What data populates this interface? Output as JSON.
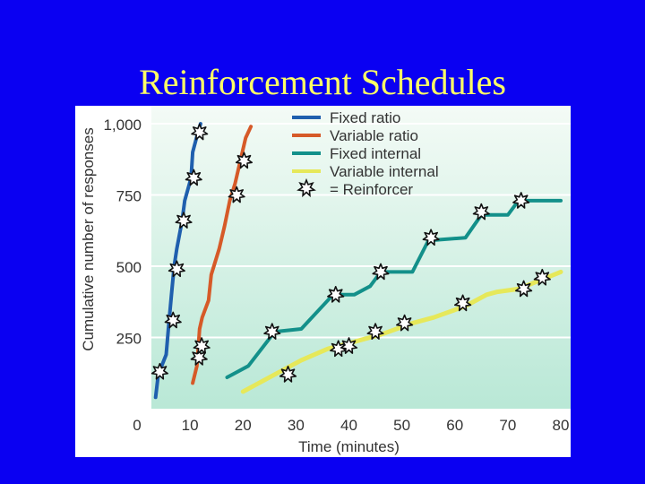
{
  "slide": {
    "title": "Reinforcement Schedules"
  },
  "colors": {
    "background": "#0a00f2",
    "title": "#ffff66",
    "plot_gradient_top": "#f4fbf6",
    "plot_gradient_bottom": "#b9e8d6",
    "gridline": "#ffffff",
    "fixed_ratio": "#1f5fae",
    "variable_ratio": "#d65a28",
    "fixed_interval": "#13908a",
    "variable_interval": "#e6e85a"
  },
  "chart_data": {
    "type": "line",
    "title": "",
    "xlabel": "Time (minutes)",
    "ylabel": "Cumulative number of responses",
    "xlim": [
      0,
      80
    ],
    "ylim": [
      0,
      1000
    ],
    "xticks": [
      "0",
      "10",
      "20",
      "30",
      "40",
      "50",
      "60",
      "70",
      "80"
    ],
    "yticks": [
      "250",
      "500",
      "750",
      "1,000"
    ],
    "ytick_values": [
      250,
      500,
      750,
      1000
    ],
    "grid": "horizontal",
    "legend_position": "top-right",
    "legend_marker_label": "= Reinforcer",
    "series": [
      {
        "name": "Fixed ratio",
        "x": [
          3.5,
          4,
          5.5,
          6,
          6.5,
          7,
          7.5,
          8.5,
          9,
          10.2,
          10.5,
          11.5,
          12
        ],
        "y": [
          40,
          120,
          190,
          300,
          400,
          500,
          560,
          660,
          730,
          810,
          900,
          970,
          1000
        ],
        "reinforcers_x": [
          4.3,
          6.8,
          7.5,
          8.8,
          10.7,
          11.8
        ],
        "reinforcers_y": [
          130,
          310,
          490,
          660,
          810,
          970
        ]
      },
      {
        "name": "Variable ratio",
        "x": [
          10.5,
          11.3,
          11.5,
          11.8,
          12.3,
          13.5,
          14,
          15.5,
          16.5,
          17.5,
          18.5,
          19.5,
          20.5,
          21.5
        ],
        "y": [
          90,
          150,
          200,
          280,
          320,
          380,
          470,
          560,
          640,
          730,
          790,
          870,
          950,
          990
        ],
        "reinforcers_x": [
          11.7,
          12.2,
          18.8,
          20.2
        ],
        "reinforcers_y": [
          180,
          220,
          750,
          870
        ]
      },
      {
        "name": "Fixed internal",
        "x": [
          17,
          21,
          26,
          31,
          37,
          41,
          44,
          46,
          52,
          55,
          62,
          65,
          70,
          72,
          80
        ],
        "y": [
          110,
          150,
          270,
          280,
          400,
          400,
          430,
          480,
          480,
          590,
          600,
          680,
          680,
          730,
          730
        ],
        "reinforcers_x": [
          25.5,
          37.5,
          46,
          55.5,
          65,
          72.5
        ],
        "reinforcers_y": [
          270,
          400,
          480,
          600,
          690,
          730
        ]
      },
      {
        "name": "Variable internal",
        "x": [
          20,
          26,
          31,
          36,
          40,
          46,
          52,
          56,
          62,
          66,
          68,
          72,
          76,
          80
        ],
        "y": [
          60,
          120,
          170,
          210,
          230,
          260,
          300,
          320,
          360,
          400,
          410,
          420,
          450,
          480
        ],
        "reinforcers_x": [
          28.5,
          38,
          40,
          45,
          50.5,
          61.5,
          73,
          76.5
        ],
        "reinforcers_y": [
          120,
          210,
          220,
          270,
          300,
          370,
          420,
          460
        ]
      }
    ]
  }
}
